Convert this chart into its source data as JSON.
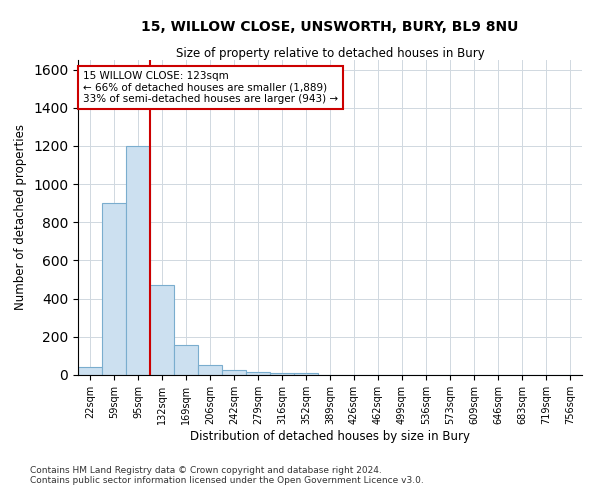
{
  "title": "15, WILLOW CLOSE, UNSWORTH, BURY, BL9 8NU",
  "subtitle": "Size of property relative to detached houses in Bury",
  "xlabel": "Distribution of detached houses by size in Bury",
  "ylabel": "Number of detached properties",
  "footer_line1": "Contains HM Land Registry data © Crown copyright and database right 2024.",
  "footer_line2": "Contains public sector information licensed under the Open Government Licence v3.0.",
  "bar_labels": [
    "22sqm",
    "59sqm",
    "95sqm",
    "132sqm",
    "169sqm",
    "206sqm",
    "242sqm",
    "279sqm",
    "316sqm",
    "352sqm",
    "389sqm",
    "426sqm",
    "462sqm",
    "499sqm",
    "536sqm",
    "573sqm",
    "609sqm",
    "646sqm",
    "683sqm",
    "719sqm",
    "756sqm"
  ],
  "bar_values": [
    40,
    900,
    1200,
    470,
    155,
    55,
    25,
    15,
    10,
    10,
    0,
    0,
    0,
    0,
    0,
    0,
    0,
    0,
    0,
    0,
    0
  ],
  "bar_color": "#cce0f0",
  "bar_edge_color": "#7aadce",
  "vline_color": "#cc0000",
  "ylim": [
    0,
    1650
  ],
  "yticks": [
    0,
    200,
    400,
    600,
    800,
    1000,
    1200,
    1400,
    1600
  ],
  "annotation_text": "15 WILLOW CLOSE: 123sqm\n← 66% of detached houses are smaller (1,889)\n33% of semi-detached houses are larger (943) →",
  "annotation_box_color": "#ffffff",
  "annotation_box_edge_color": "#cc0000",
  "background_color": "#ffffff",
  "grid_color": "#d0d8e0"
}
